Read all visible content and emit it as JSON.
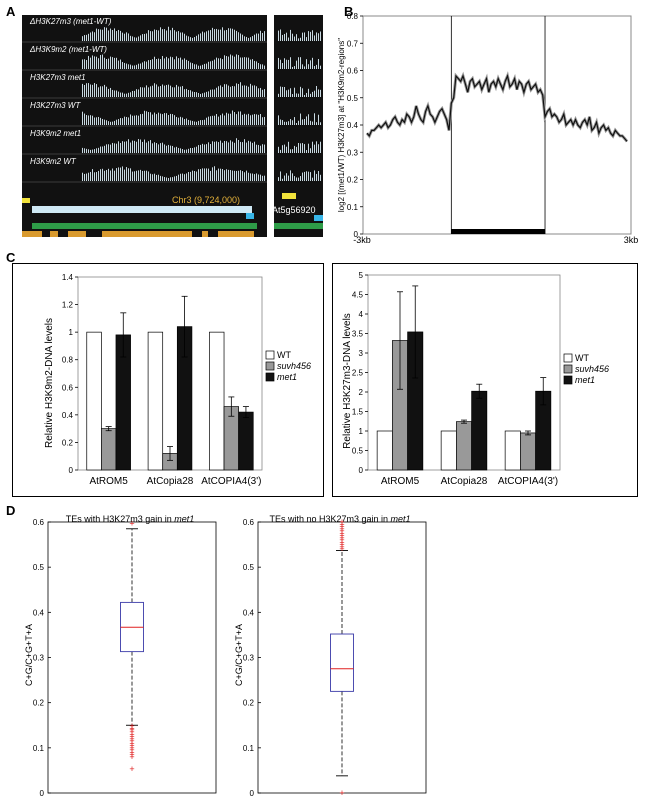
{
  "panel_letters": {
    "a": "A",
    "b": "B",
    "c": "C",
    "d": "D"
  },
  "panel_a": {
    "track_labels": [
      {
        "prefix": "Δ",
        "name": "H3K27m3",
        "suffix": " (met1-WT)"
      },
      {
        "prefix": "Δ",
        "name": "H3K9m2",
        "suffix": " (met1-WT)"
      },
      {
        "prefix": "",
        "name": "H3K27m3",
        "suffix": " met1"
      },
      {
        "prefix": "",
        "name": "H3K27m3",
        "suffix": " WT"
      },
      {
        "prefix": "",
        "name": "H3K9m2",
        "suffix": " met1"
      },
      {
        "prefix": "",
        "name": "H3K9m2",
        "suffix": " WT"
      }
    ],
    "locus_label": "Chr3 (9,724,000)",
    "gene_label": "At5g56920",
    "colors": {
      "background": "#111111",
      "signal": "#c8d8e0",
      "gene_blue": "#cfe9f5",
      "gene_green": "#2e9c48",
      "gene_orange": "#d99a2e",
      "gene_cyan": "#38b6e8",
      "gene_yellow": "#f1e23b"
    }
  },
  "chart_data": [
    {
      "id": "B",
      "type": "line",
      "ylabel": "log2 [(met1/WT) H3K27m3] at \"H3K9m2-regions\"",
      "xticks": [
        "-3kb",
        "3kb"
      ],
      "ylim": [
        0,
        0.8
      ],
      "yticks": [
        "0",
        "0.1",
        "0.2",
        "0.3",
        "0.4",
        "0.5",
        "0.6",
        "0.7",
        "0.8"
      ],
      "region_boundaries": [
        36,
        76
      ],
      "values": [
        0.37,
        0.36,
        0.38,
        0.38,
        0.39,
        0.4,
        0.39,
        0.4,
        0.41,
        0.39,
        0.4,
        0.42,
        0.43,
        0.41,
        0.4,
        0.42,
        0.41,
        0.44,
        0.43,
        0.41,
        0.43,
        0.47,
        0.44,
        0.42,
        0.41,
        0.45,
        0.47,
        0.44,
        0.43,
        0.41,
        0.43,
        0.45,
        0.46,
        0.44,
        0.42,
        0.38,
        0.48,
        0.5,
        0.58,
        0.57,
        0.56,
        0.58,
        0.55,
        0.52,
        0.56,
        0.57,
        0.54,
        0.55,
        0.56,
        0.53,
        0.55,
        0.57,
        0.52,
        0.55,
        0.56,
        0.54,
        0.57,
        0.55,
        0.53,
        0.56,
        0.58,
        0.54,
        0.55,
        0.57,
        0.53,
        0.56,
        0.55,
        0.52,
        0.55,
        0.56,
        0.53,
        0.54,
        0.55,
        0.52,
        0.53,
        0.51,
        0.43,
        0.45,
        0.46,
        0.43,
        0.44,
        0.43,
        0.41,
        0.42,
        0.44,
        0.4,
        0.41,
        0.42,
        0.4,
        0.42,
        0.4,
        0.39,
        0.41,
        0.42,
        0.4,
        0.43,
        0.38,
        0.39,
        0.41,
        0.37,
        0.39,
        0.4,
        0.38,
        0.39,
        0.37,
        0.36,
        0.38,
        0.37,
        0.36,
        0.36,
        0.35,
        0.34
      ]
    },
    {
      "id": "C1",
      "type": "bar",
      "ylabel": "Relative H3K9m2-DNA levels",
      "categories": [
        "AtROM5",
        "AtCopia28",
        "AtCOPIA4(3')"
      ],
      "ylim": [
        0,
        1.4
      ],
      "yticks": [
        "0",
        "0.2",
        "0.4",
        "0.6",
        "0.8",
        "1",
        "1.2",
        "1.4"
      ],
      "series": [
        {
          "name": "WT",
          "color": "#ffffff",
          "values": [
            1.0,
            1.0,
            1.0
          ],
          "errors": [
            0,
            0,
            0
          ]
        },
        {
          "name": "suvh456",
          "color": "#999999",
          "values": [
            0.3,
            0.12,
            0.46
          ],
          "errors": [
            0.015,
            0.05,
            0.07
          ]
        },
        {
          "name": "met1",
          "color": "#111111",
          "values": [
            0.98,
            1.04,
            0.42
          ],
          "errors": [
            0.16,
            0.22,
            0.04
          ]
        }
      ]
    },
    {
      "id": "C2",
      "type": "bar",
      "ylabel": "Relative H3K27m3-DNA levels",
      "categories": [
        "AtROM5",
        "AtCopia28",
        "AtCOPIA4(3')"
      ],
      "ylim": [
        0,
        5
      ],
      "yticks": [
        "0",
        "0.5",
        "1",
        "1.5",
        "2",
        "2.5",
        "3",
        "3.5",
        "4",
        "4.5",
        "5"
      ],
      "series": [
        {
          "name": "WT",
          "color": "#ffffff",
          "values": [
            1.0,
            1.0,
            1.0
          ],
          "errors": [
            0,
            0,
            0
          ]
        },
        {
          "name": "suvh456",
          "color": "#999999",
          "values": [
            3.32,
            1.24,
            0.95
          ],
          "errors": [
            1.25,
            0.04,
            0.05
          ]
        },
        {
          "name": "met1",
          "color": "#111111",
          "values": [
            3.54,
            2.02,
            2.02
          ],
          "errors": [
            1.18,
            0.18,
            0.35
          ]
        }
      ]
    },
    {
      "id": "D1",
      "type": "box",
      "title_prefix": "TEs with H3K27m3 gain in ",
      "title_italic": "met1",
      "ylabel": "C+G/C+G+T+A",
      "ylim": [
        0,
        0.6
      ],
      "yticks": [
        "0",
        "0.1",
        "0.2",
        "0.3",
        "0.4",
        "0.5",
        "0.6"
      ],
      "q1": 0.313,
      "median": 0.367,
      "q3": 0.422,
      "whisker_low": 0.15,
      "whisker_high": 0.585,
      "outliers": [
        0.597,
        0.148,
        0.143,
        0.14,
        0.135,
        0.13,
        0.125,
        0.12,
        0.115,
        0.11,
        0.105,
        0.1,
        0.095,
        0.09,
        0.085,
        0.08,
        0.053
      ]
    },
    {
      "id": "D2",
      "type": "box",
      "title_prefix": "TEs with no H3K27m3 gain in ",
      "title_italic": "met1",
      "ylabel": "C+G/C+G+T+A",
      "ylim": [
        0,
        0.6
      ],
      "yticks": [
        "0",
        "0.1",
        "0.2",
        "0.3",
        "0.4",
        "0.5",
        "0.6"
      ],
      "q1": 0.225,
      "median": 0.275,
      "q3": 0.352,
      "whisker_low": 0.038,
      "whisker_high": 0.537,
      "outliers": [
        0.6,
        0.595,
        0.59,
        0.585,
        0.58,
        0.575,
        0.57,
        0.565,
        0.56,
        0.555,
        0.55,
        0.545,
        0.54,
        0.0
      ]
    }
  ]
}
